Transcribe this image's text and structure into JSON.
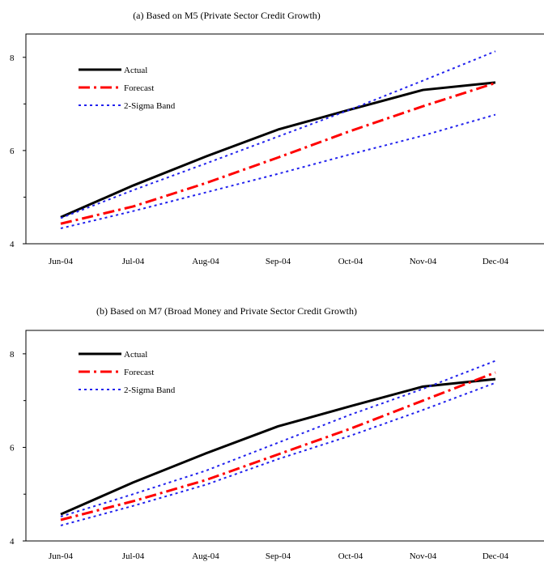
{
  "chart_data": [
    {
      "type": "line",
      "title": "(a) Based on M5 (Private Sector Credit Growth)",
      "categories": [
        "Jun-04",
        "Jul-04",
        "Aug-04",
        "Sep-04",
        "Oct-04",
        "Nov-04",
        "Dec-04"
      ],
      "ylim": [
        4,
        8.5
      ],
      "yticks": [
        4,
        6,
        8
      ],
      "grid": false,
      "legend_position": "top-left",
      "series": [
        {
          "name": "Actual",
          "style": "solid",
          "color": "#000000",
          "values": [
            4.57,
            5.25,
            5.87,
            6.45,
            6.88,
            7.3,
            7.46
          ]
        },
        {
          "name": "Forecast",
          "style": "dashdot",
          "color": "#ff0000",
          "values": [
            4.43,
            4.8,
            5.3,
            5.85,
            6.42,
            6.95,
            7.45
          ]
        },
        {
          "name": "2-Sigma Band",
          "style": "dotted",
          "color": "#2222ee",
          "values": [
            4.55,
            5.15,
            5.72,
            6.3,
            6.88,
            7.5,
            8.13
          ]
        },
        {
          "name": "",
          "style": "dotted",
          "color": "#2222ee",
          "values": [
            4.33,
            4.7,
            5.1,
            5.5,
            5.92,
            6.32,
            6.77
          ]
        }
      ]
    },
    {
      "type": "line",
      "title": "(b) Based on M7 (Broad Money and Private Sector Credit Growth)",
      "categories": [
        "Jun-04",
        "Jul-04",
        "Aug-04",
        "Sep-04",
        "Oct-04",
        "Nov-04",
        "Dec-04"
      ],
      "ylim": [
        4,
        8.5
      ],
      "yticks": [
        4,
        6,
        8
      ],
      "grid": false,
      "legend_position": "top-left",
      "series": [
        {
          "name": "Actual",
          "style": "solid",
          "color": "#000000",
          "values": [
            4.57,
            5.25,
            5.87,
            6.45,
            6.88,
            7.3,
            7.46
          ]
        },
        {
          "name": "Forecast",
          "style": "dashdot",
          "color": "#ff0000",
          "values": [
            4.45,
            4.85,
            5.3,
            5.85,
            6.4,
            7.0,
            7.6
          ]
        },
        {
          "name": "2-Sigma Band",
          "style": "dotted",
          "color": "#2222ee",
          "values": [
            4.52,
            5.0,
            5.5,
            6.1,
            6.7,
            7.25,
            7.85
          ]
        },
        {
          "name": "",
          "style": "dotted",
          "color": "#2222ee",
          "values": [
            4.33,
            4.75,
            5.2,
            5.75,
            6.25,
            6.8,
            7.38
          ]
        }
      ]
    }
  ]
}
